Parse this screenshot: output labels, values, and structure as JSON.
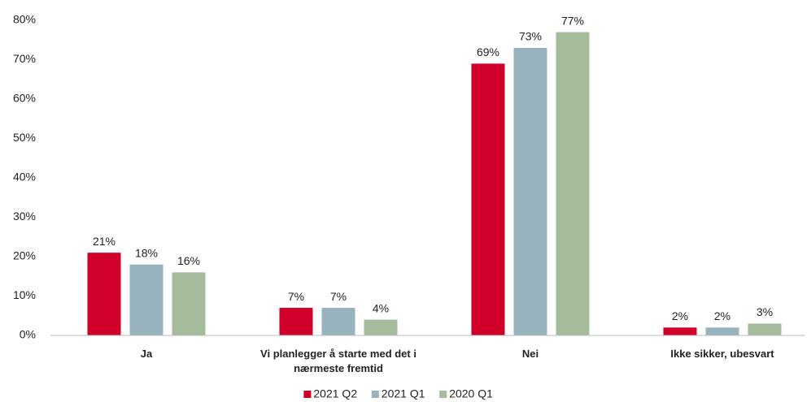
{
  "chart_data": {
    "type": "bar",
    "categories": [
      "Ja",
      "Vi planlegger å starte med det i nærmeste fremtid",
      "Nei",
      "Ikke sikker, ubesvart"
    ],
    "series": [
      {
        "name": "2021 Q2",
        "color": "#d0002b",
        "values": [
          21,
          7,
          69,
          2
        ],
        "value_labels": [
          "21%",
          "7%",
          "69%",
          "2%"
        ]
      },
      {
        "name": "2021 Q1",
        "color": "#97b3bd",
        "values": [
          18,
          7,
          73,
          2
        ],
        "value_labels": [
          "18%",
          "7%",
          "73%",
          "2%"
        ]
      },
      {
        "name": "2020 Q1",
        "color": "#a4bc9b",
        "values": [
          16,
          4,
          77,
          3
        ],
        "value_labels": [
          "16%",
          "4%",
          "77%",
          "3%"
        ]
      }
    ],
    "ylim": [
      0,
      80
    ],
    "yticks": [
      {
        "value": 0,
        "label": "0%"
      },
      {
        "value": 10,
        "label": "10%"
      },
      {
        "value": 20,
        "label": "20%"
      },
      {
        "value": 30,
        "label": "30%"
      },
      {
        "value": 40,
        "label": "40%"
      },
      {
        "value": 50,
        "label": "50%"
      },
      {
        "value": 60,
        "label": "60%"
      },
      {
        "value": 70,
        "label": "70%"
      },
      {
        "value": 80,
        "label": "80%"
      }
    ],
    "grid": false,
    "legend": "bottom"
  }
}
